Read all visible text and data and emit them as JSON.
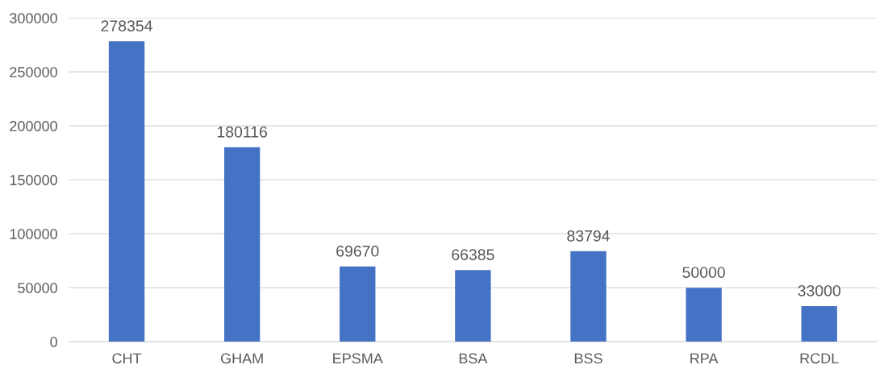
{
  "chart_data": {
    "type": "bar",
    "categories": [
      "CHT",
      "GHAM",
      "EPSMA",
      "BSA",
      "BSS",
      "RPA",
      "RCDL"
    ],
    "values": [
      278354,
      180116,
      69670,
      66385,
      83794,
      50000,
      33000
    ],
    "color": "#4472c4",
    "ylim": [
      0,
      300000
    ],
    "yticks": [
      0,
      50000,
      100000,
      150000,
      200000,
      250000,
      300000
    ],
    "grid": "y",
    "data_labels": true
  }
}
